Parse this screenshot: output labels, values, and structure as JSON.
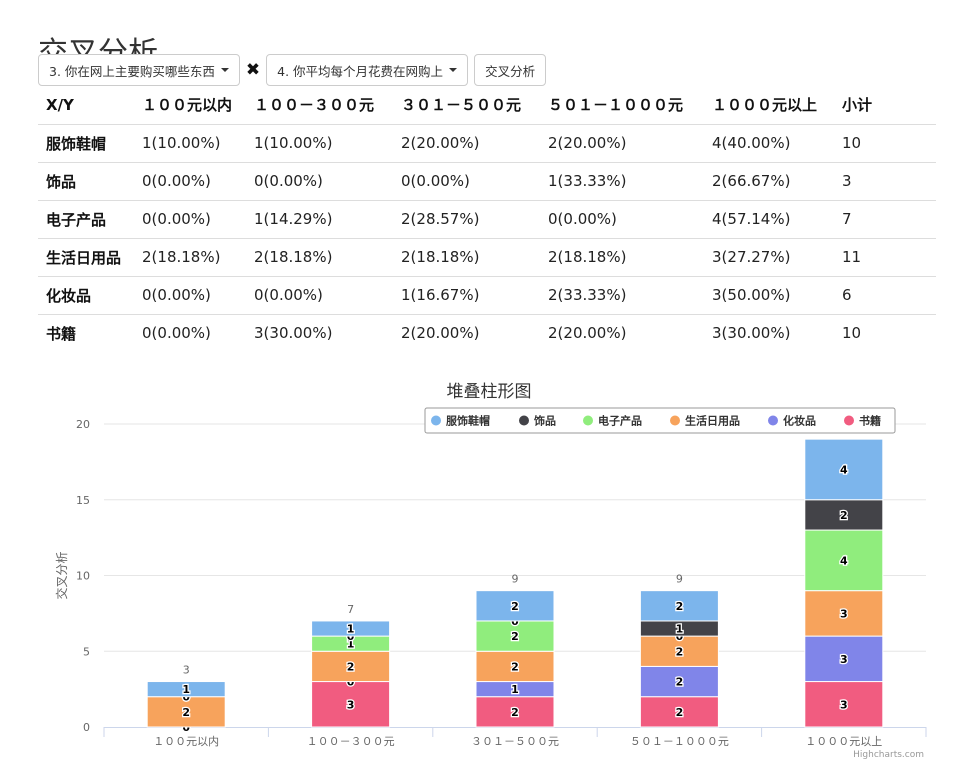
{
  "page": {
    "title": "交叉分析"
  },
  "toolbar": {
    "x_select_label": "3. 你在网上主要购买哪些东西",
    "y_select_label": "4. 你平均每个月花费在网购上",
    "cross_icon": "✖",
    "analyze_label": "交叉分析"
  },
  "table": {
    "header": [
      "X/Y",
      "１００元以内",
      "１００－３００元",
      "３０１－５００元",
      "５０１－１０００元",
      "１０００元以上",
      "小计"
    ],
    "rows": [
      {
        "label": "服饰鞋帽",
        "cells": [
          "1(10.00%)",
          "1(10.00%)",
          "2(20.00%)",
          "2(20.00%)",
          "4(40.00%)",
          "10"
        ]
      },
      {
        "label": "饰品",
        "cells": [
          "0(0.00%)",
          "0(0.00%)",
          "0(0.00%)",
          "1(33.33%)",
          "2(66.67%)",
          "3"
        ]
      },
      {
        "label": "电子产品",
        "cells": [
          "0(0.00%)",
          "1(14.29%)",
          "2(28.57%)",
          "0(0.00%)",
          "4(57.14%)",
          "7"
        ]
      },
      {
        "label": "生活日用品",
        "cells": [
          "2(18.18%)",
          "2(18.18%)",
          "2(18.18%)",
          "2(18.18%)",
          "3(27.27%)",
          "11"
        ]
      },
      {
        "label": "化妆品",
        "cells": [
          "0(0.00%)",
          "0(0.00%)",
          "1(16.67%)",
          "2(33.33%)",
          "3(50.00%)",
          "6"
        ]
      },
      {
        "label": "书籍",
        "cells": [
          "0(0.00%)",
          "3(30.00%)",
          "2(20.00%)",
          "2(20.00%)",
          "3(30.00%)",
          "10"
        ]
      }
    ]
  },
  "chart_data": {
    "type": "bar",
    "stacked": true,
    "title": "堆叠柱形图",
    "xlabel": "",
    "ylabel": "交叉分析",
    "ylim": [
      0,
      20
    ],
    "yticks": [
      0,
      5,
      10,
      15,
      20
    ],
    "grid": true,
    "legend_position": "top-right",
    "categories": [
      "１００元以内",
      "１００－３００元",
      "３０１－５００元",
      "５０１－１０００元",
      "１０００元以上"
    ],
    "totals": [
      3,
      7,
      9,
      9,
      19
    ],
    "series": [
      {
        "name": "服饰鞋帽",
        "color": "#7cb5ec",
        "values": [
          1,
          1,
          2,
          2,
          4
        ]
      },
      {
        "name": "饰品",
        "color": "#434348",
        "values": [
          0,
          0,
          0,
          1,
          2
        ]
      },
      {
        "name": "电子产品",
        "color": "#90ed7d",
        "values": [
          0,
          1,
          2,
          0,
          4
        ]
      },
      {
        "name": "生活日用品",
        "color": "#f7a35c",
        "values": [
          2,
          2,
          2,
          2,
          3
        ]
      },
      {
        "name": "化妆品",
        "color": "#8085e9",
        "values": [
          0,
          0,
          1,
          2,
          3
        ]
      },
      {
        "name": "书籍",
        "color": "#f15c80",
        "values": [
          0,
          3,
          2,
          2,
          3
        ]
      }
    ],
    "credit": "Highcharts.com"
  }
}
